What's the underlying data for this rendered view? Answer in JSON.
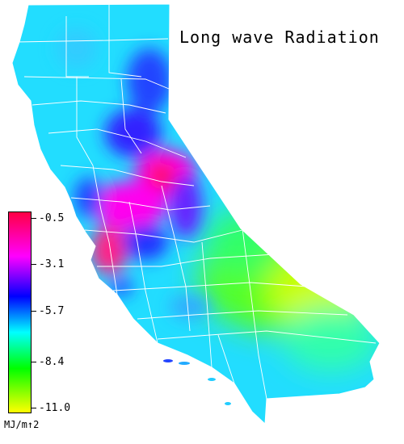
{
  "map": {
    "title": "Long wave Radiation",
    "region": "California",
    "palette_colors": [
      "#ff0044",
      "#ff00ff",
      "#0000ff",
      "#00ffff",
      "#00ff00",
      "#ffff00"
    ],
    "boundary_color": "#ffffff"
  },
  "legend": {
    "labels": [
      "-0.5",
      "-3.1",
      "-5.7",
      "-8.4",
      "-11.0"
    ],
    "unit": "MJ/m↑2",
    "colors": [
      "#ff0044",
      "#ff00ff",
      "#0000ff",
      "#00ffff",
      "#00ff00",
      "#ffff00"
    ]
  }
}
